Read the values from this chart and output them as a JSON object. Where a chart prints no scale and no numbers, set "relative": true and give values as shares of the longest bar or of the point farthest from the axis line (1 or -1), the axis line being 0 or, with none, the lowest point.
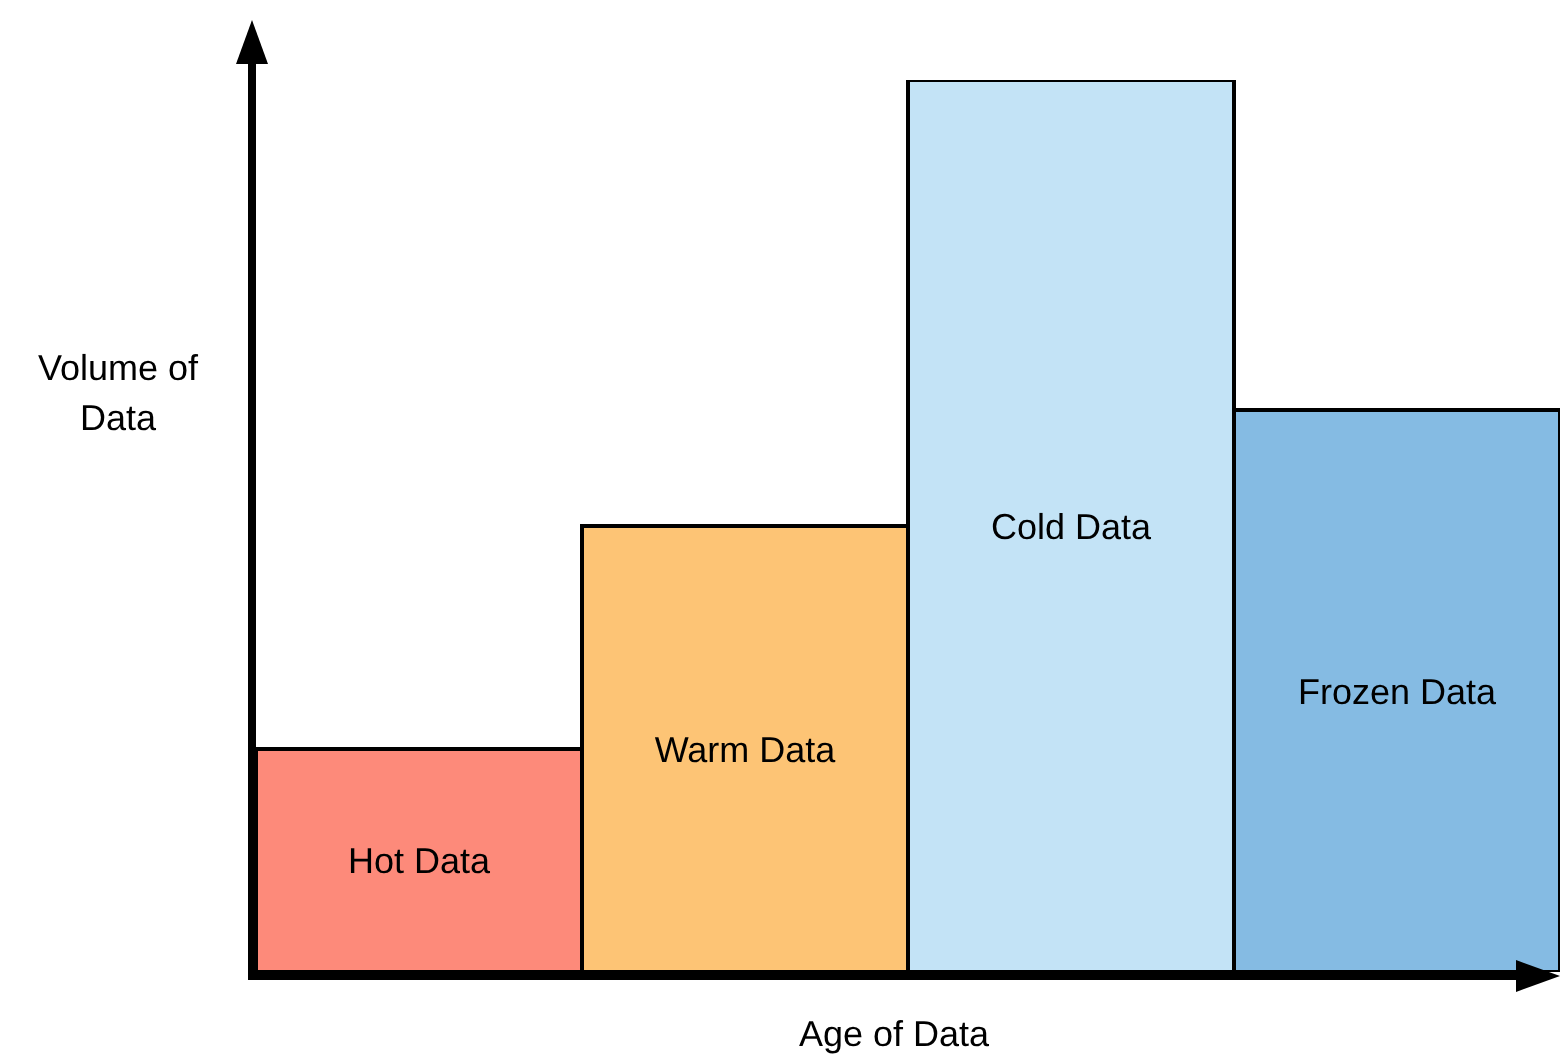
{
  "chart_data": {
    "type": "bar",
    "relative": true,
    "xlabel": "Age of Data",
    "ylabel": "Volume of Data",
    "categories": [
      "Hot Data",
      "Warm Data",
      "Cold Data",
      "Frozen Data"
    ],
    "values": [
      0.25,
      0.5,
      1,
      0.63
    ],
    "colors": [
      "#fd8a7a",
      "#fdc475",
      "#c3e3f6",
      "#85bbe3"
    ],
    "tick_labels": false
  }
}
